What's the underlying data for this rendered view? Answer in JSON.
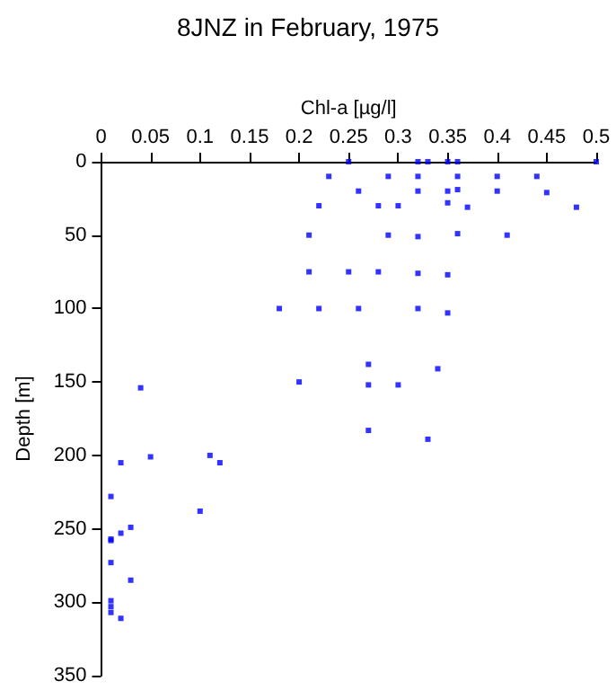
{
  "chart_data": {
    "type": "scatter",
    "title": "8JNZ in February, 1975",
    "xlabel": "Chl-a [µg/l]",
    "ylabel": "Depth [m]",
    "series": [
      {
        "color": "#0000ff",
        "x": [
          0.25,
          0.32,
          0.33,
          0.35,
          0.36,
          0.5,
          0.23,
          0.29,
          0.32,
          0.36,
          0.4,
          0.44,
          0.26,
          0.32,
          0.35,
          0.36,
          0.4,
          0.45,
          0.22,
          0.28,
          0.3,
          0.35,
          0.37,
          0.48,
          0.21,
          0.29,
          0.32,
          0.36,
          0.41,
          0.21,
          0.25,
          0.28,
          0.32,
          0.35,
          0.18,
          0.22,
          0.26,
          0.32,
          0.35,
          0.27,
          0.34,
          0.2,
          0.27,
          0.3,
          0.04,
          0.27,
          0.33,
          0.11,
          0.05,
          0.02,
          0.12,
          0.01,
          0.1,
          0.01,
          0.01,
          0.02,
          0.03,
          0.01,
          0.03,
          0.01,
          0.01,
          0.01,
          0.02
        ],
        "values": [
          0,
          0,
          0,
          0,
          0,
          0,
          10,
          10,
          10,
          10,
          10,
          10,
          20,
          20,
          20,
          19,
          20,
          21,
          30,
          30,
          30,
          28,
          31,
          31,
          50,
          50,
          51,
          49,
          50,
          75,
          75,
          75,
          76,
          77,
          100,
          100,
          100,
          100,
          103,
          138,
          141,
          150,
          152,
          152,
          154,
          183,
          189,
          200,
          201,
          205,
          205,
          228,
          238,
          257,
          258,
          253,
          249,
          273,
          285,
          299,
          303,
          307,
          311
        ]
      }
    ],
    "xlim": [
      0,
      0.5
    ],
    "xticks": [
      0,
      0.05,
      0.1,
      0.15,
      0.2,
      0.25,
      0.3,
      0.35,
      0.4,
      0.45,
      0.5
    ],
    "ylim": [
      350,
      0
    ],
    "yticks": [
      0,
      50,
      100,
      150,
      200,
      250,
      300,
      350
    ],
    "grid": false,
    "marker": "square"
  }
}
